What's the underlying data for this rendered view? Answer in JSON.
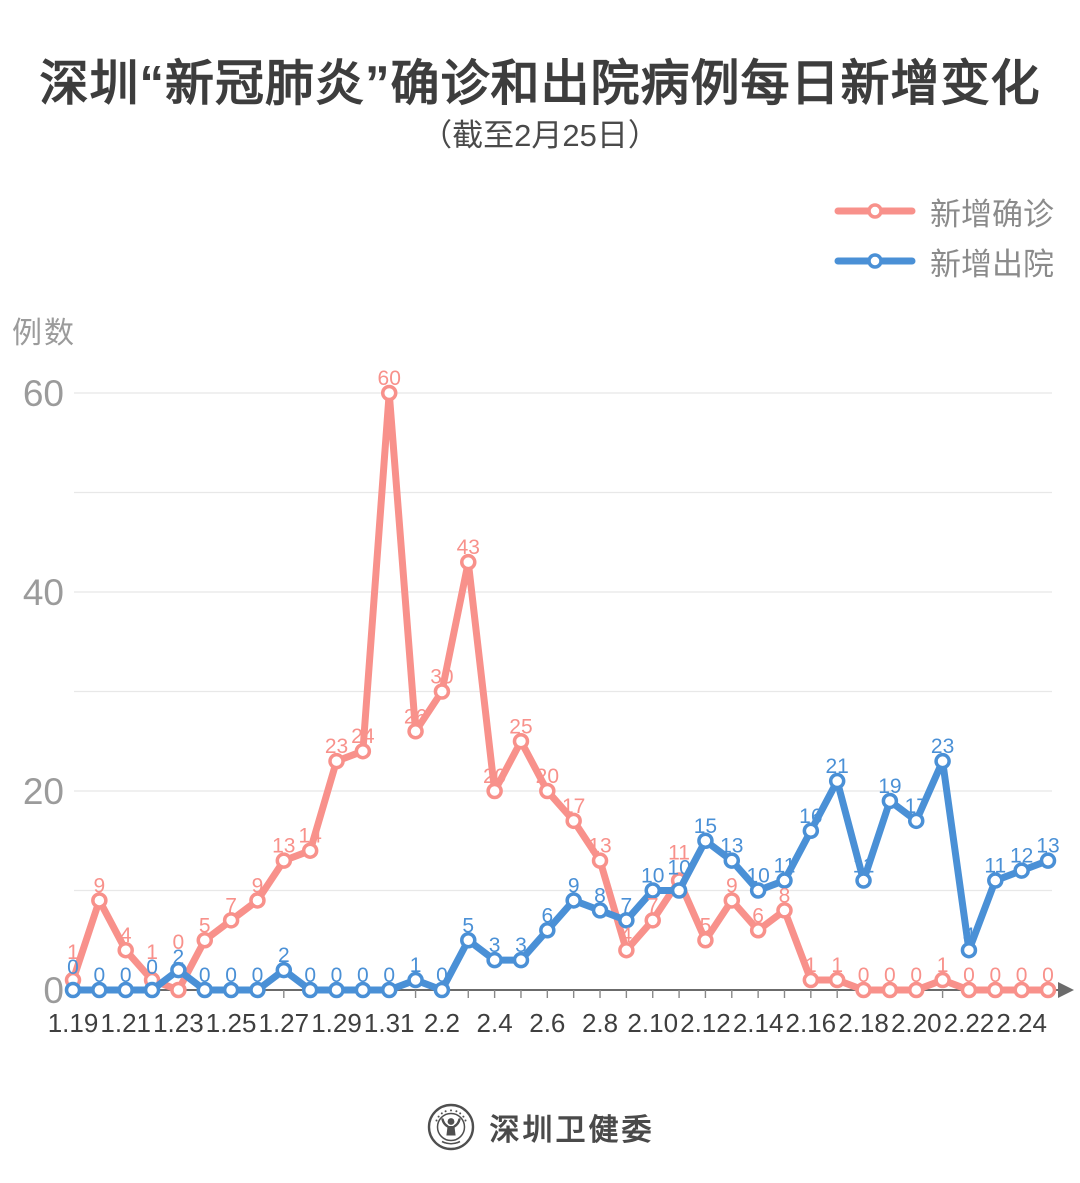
{
  "title": "深圳“新冠肺炎”确诊和出院病例每日新增变化",
  "subtitle": "（截至2月25日）",
  "y_axis_label": "例数",
  "source": "深圳卫健委",
  "colors": {
    "confirmed": "#F8918B",
    "discharged": "#4A90D6",
    "title_text": "#3d3d3d",
    "axis": "#6b6b6b",
    "grid": "#e8e8e8",
    "tick_label": "#3f3f3f",
    "y_label": "#9b9b9b"
  },
  "legend": [
    {
      "label": "新增确诊",
      "color": "#F8918B"
    },
    {
      "label": "新增出院",
      "color": "#4A90D6"
    }
  ],
  "chart_data": {
    "type": "line",
    "title": "深圳“新冠肺炎”确诊和出院病例每日新增变化",
    "subtitle": "（截至2月25日）",
    "xlabel": "",
    "ylabel": "例数",
    "ylim": [
      0,
      62
    ],
    "yticks": [
      0,
      20,
      40,
      60
    ],
    "grid_step": 10,
    "x_tick_every": 2,
    "legend_position": "top-right",
    "point_labels": true,
    "x": [
      "1.19",
      "1.20",
      "1.21",
      "1.22",
      "1.23",
      "1.24",
      "1.25",
      "1.26",
      "1.27",
      "1.28",
      "1.29",
      "1.30",
      "1.31",
      "2.1",
      "2.2",
      "2.3",
      "2.4",
      "2.5",
      "2.6",
      "2.7",
      "2.8",
      "2.9",
      "2.10",
      "2.11",
      "2.12",
      "2.13",
      "2.14",
      "2.15",
      "2.16",
      "2.17",
      "2.18",
      "2.19",
      "2.20",
      "2.21",
      "2.22",
      "2.23",
      "2.24",
      "2.25"
    ],
    "series": [
      {
        "name": "新增确诊",
        "color": "#F8918B",
        "values": [
          1,
          9,
          4,
          1,
          0,
          5,
          7,
          9,
          13,
          14,
          23,
          24,
          60,
          26,
          30,
          43,
          20,
          25,
          20,
          17,
          13,
          4,
          7,
          11,
          5,
          9,
          6,
          8,
          1,
          1,
          0,
          0,
          0,
          1,
          0,
          0,
          0,
          0
        ]
      },
      {
        "name": "新增出院",
        "color": "#4A90D6",
        "values": [
          0,
          0,
          0,
          0,
          2,
          0,
          0,
          0,
          2,
          0,
          0,
          0,
          0,
          1,
          0,
          5,
          3,
          3,
          6,
          9,
          8,
          7,
          10,
          10,
          15,
          13,
          10,
          11,
          16,
          21,
          11,
          19,
          17,
          23,
          4,
          11,
          12,
          13
        ]
      }
    ]
  }
}
